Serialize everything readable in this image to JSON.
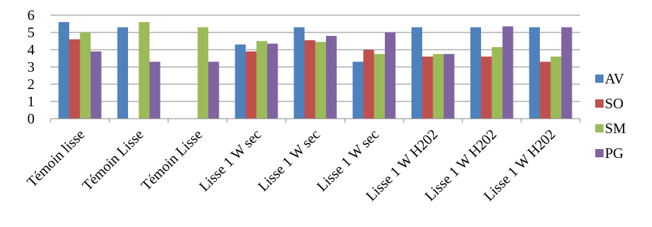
{
  "chart_data": {
    "type": "bar",
    "categories": [
      "Témoin lisse",
      "Témoin Lisse",
      "Témoin Lisse",
      "Lisse 1 W sec",
      "Lisse 1 W sec",
      "Lisse 1 W sec",
      "Lisse 1 W H202",
      "Lisse 1 W H202",
      "Lisse 1 W H202"
    ],
    "series": [
      {
        "name": "AV",
        "color": "#4f81bd",
        "values": [
          5.6,
          5.3,
          0,
          4.3,
          5.3,
          3.3,
          5.3,
          5.3,
          5.3
        ]
      },
      {
        "name": "SO",
        "color": "#c0504d",
        "values": [
          4.6,
          0,
          0,
          3.9,
          4.55,
          4.0,
          3.6,
          3.6,
          3.3
        ]
      },
      {
        "name": "SM",
        "color": "#9bbb59",
        "values": [
          5.0,
          5.6,
          5.3,
          4.5,
          4.45,
          3.75,
          3.75,
          4.15,
          3.6
        ]
      },
      {
        "name": "PG",
        "color": "#8064a2",
        "values": [
          3.9,
          3.3,
          3.3,
          4.35,
          4.8,
          5.0,
          3.75,
          5.35,
          5.3
        ]
      }
    ],
    "ylim": [
      0,
      6
    ],
    "yticks": [
      0,
      1,
      2,
      3,
      4,
      5,
      6
    ],
    "grid": true,
    "legend_position": "right",
    "title": "",
    "xlabel": "",
    "ylabel": ""
  }
}
